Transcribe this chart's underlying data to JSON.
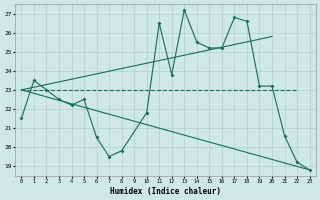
{
  "xlabel": "Humidex (Indice chaleur)",
  "bg_color": "#cde8e5",
  "grid_color": "#b0d0cc",
  "line_color": "#1a6b5a",
  "x_data": [
    0,
    1,
    2,
    3,
    4,
    5,
    6,
    7,
    8,
    9,
    10,
    11,
    12,
    13,
    14,
    15,
    16,
    17,
    18,
    19,
    20,
    21,
    22,
    23
  ],
  "series1_y": [
    21.5,
    23.5,
    23.0,
    22.5,
    22.2,
    22.5,
    20.5,
    19.5,
    19.8,
    null,
    21.8,
    26.5,
    23.8,
    27.2,
    25.5,
    25.2,
    25.2,
    26.8,
    26.6,
    23.2,
    23.2,
    20.6,
    19.2,
    18.8
  ],
  "series2_x": [
    0,
    22
  ],
  "series2_y": [
    23.0,
    23.0
  ],
  "series3_x": [
    0,
    20
  ],
  "series3_y": [
    23.0,
    25.8
  ],
  "series4_x": [
    0,
    23
  ],
  "series4_y": [
    23.0,
    18.8
  ],
  "ylim_min": 18.5,
  "ylim_max": 27.5,
  "yticks": [
    19,
    20,
    21,
    22,
    23,
    24,
    25,
    26,
    27
  ],
  "xticks": [
    0,
    1,
    2,
    3,
    4,
    5,
    6,
    7,
    8,
    9,
    10,
    11,
    12,
    13,
    14,
    15,
    16,
    17,
    18,
    19,
    20,
    21,
    22,
    23
  ]
}
